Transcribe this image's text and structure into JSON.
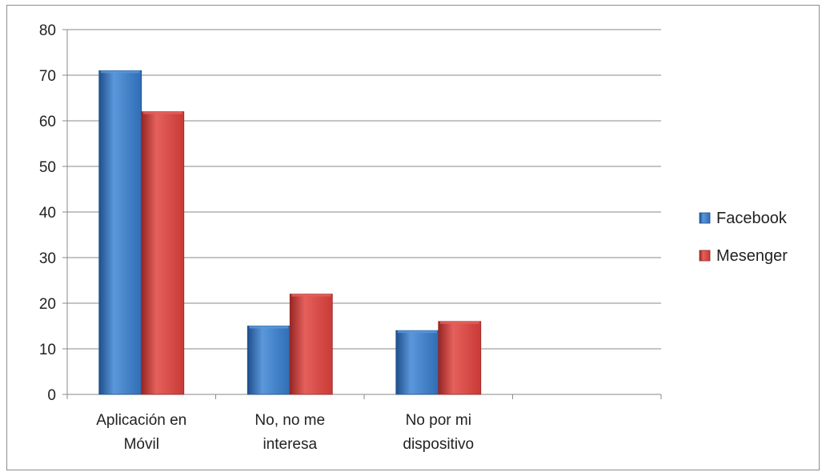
{
  "chart_data": {
    "type": "bar",
    "categories": [
      [
        "Aplicación en",
        "Móvil"
      ],
      [
        "No, no me",
        "interesa"
      ],
      [
        "No por mi",
        "dispositivo"
      ],
      [
        "",
        ""
      ]
    ],
    "series": [
      {
        "name": "Facebook",
        "values": [
          71,
          15,
          14,
          null
        ],
        "color": "#2f6db5",
        "color_light": "#5a97db",
        "color_dark": "#1f4f8a"
      },
      {
        "name": "Mesenger",
        "values": [
          62,
          22,
          16,
          null
        ],
        "color": "#c93a36",
        "color_light": "#e5605b",
        "color_dark": "#962624"
      }
    ],
    "title": "",
    "xlabel": "",
    "ylabel": "",
    "ylim": [
      0,
      80
    ],
    "yticks": [
      0,
      10,
      20,
      30,
      40,
      50,
      60,
      70,
      80
    ],
    "grid": true,
    "legend_position": "right"
  }
}
